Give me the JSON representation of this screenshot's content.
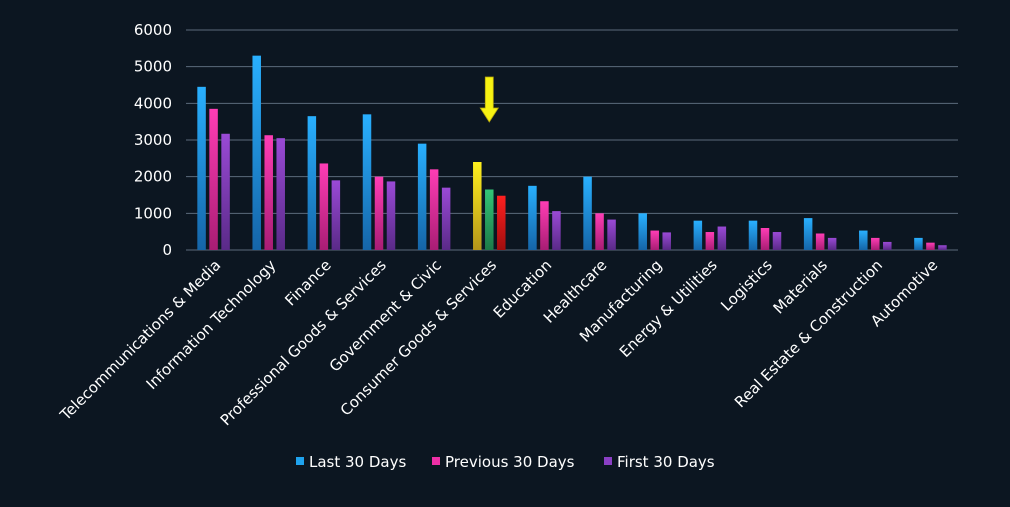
{
  "colors": {
    "background": "#0c1621",
    "grid": "#5b6b7b",
    "last_30": "#1fa3ee",
    "previous_30": "#ee2fa6",
    "first_30": "#8a3fc4",
    "highlight_last": "#f2e21a",
    "highlight_previous": "#2bb36b",
    "highlight_first": "#f01a1a",
    "arrow": "#f7f212"
  },
  "chart_data": {
    "type": "bar",
    "title": "",
    "xlabel": "",
    "ylabel": "",
    "ylim": [
      0,
      6000
    ],
    "yticks": [
      0,
      1000,
      2000,
      3000,
      4000,
      5000,
      6000
    ],
    "ytick_labels": [
      "0",
      "1000",
      "2000",
      "3000",
      "4000",
      "5000",
      "6000"
    ],
    "grid": true,
    "legend_position": "bottom",
    "categories": [
      "Telecommunications & Media",
      "Information Technology",
      "Finance",
      "Professional Goods & Services",
      "Government & Civic",
      "Consumer Goods &  Services",
      "Education",
      "Healthcare",
      "Manufacturing",
      "Energy & Utilities",
      "Logistics",
      "Materials",
      "Real Estate & Construction",
      "Automotive"
    ],
    "series": [
      {
        "name": "Last 30 Days",
        "values": [
          4450,
          5300,
          3650,
          3700,
          2900,
          2400,
          1750,
          2000,
          1000,
          800,
          800,
          870,
          530,
          330
        ]
      },
      {
        "name": "Previous 30 Days",
        "values": [
          3850,
          3130,
          2360,
          2000,
          2200,
          1650,
          1330,
          1000,
          530,
          490,
          600,
          450,
          330,
          200
        ]
      },
      {
        "name": "First 30 Days",
        "values": [
          3170,
          3050,
          1900,
          1870,
          1700,
          1480,
          1060,
          830,
          480,
          640,
          490,
          330,
          220,
          130
        ]
      }
    ],
    "annotations": [
      {
        "type": "arrow",
        "category": "Consumer Goods &  Services",
        "direction": "down"
      }
    ],
    "highlighted_category": "Consumer Goods &  Services"
  }
}
